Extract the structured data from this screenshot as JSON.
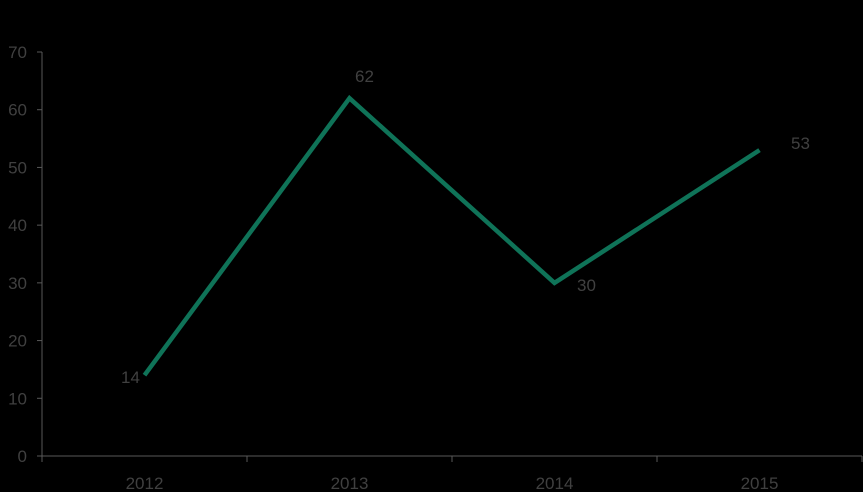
{
  "chart_data": {
    "type": "line",
    "title": "",
    "xlabel": "",
    "ylabel": "",
    "categories": [
      "2012",
      "2013",
      "2014",
      "2015"
    ],
    "series": [
      {
        "values": [
          14,
          62,
          30,
          53
        ],
        "color": "#0f7358"
      }
    ],
    "data_labels": [
      "14",
      "62",
      "30",
      "53"
    ],
    "ylim": [
      0,
      70
    ],
    "y_ticks": [
      0,
      10,
      20,
      30,
      40,
      50,
      60,
      70
    ],
    "y_tick_labels": [
      "0",
      "10",
      "20",
      "30",
      "40",
      "50",
      "60",
      "70"
    ],
    "x_tick_labels": [
      "2012",
      "2013",
      "2014",
      "2015"
    ],
    "grid": false,
    "legend": "none"
  },
  "colors": {
    "background": "#000000",
    "axis": "#595959",
    "text": "#404040",
    "line": "#0f7358"
  }
}
